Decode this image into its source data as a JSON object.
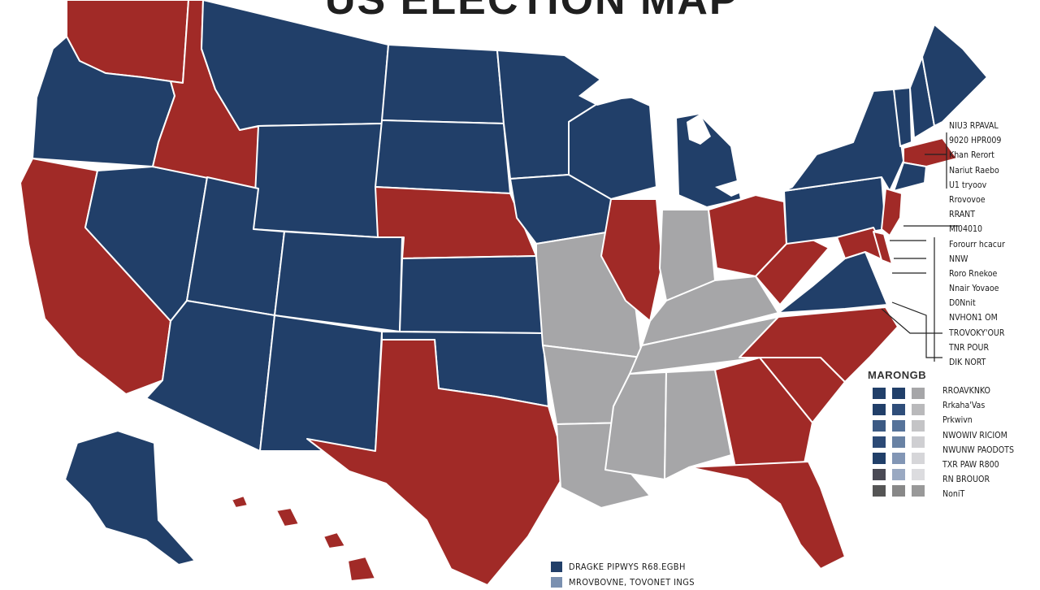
{
  "title": "US ELECTION MAP",
  "colors": {
    "blue": "#213f69",
    "red": "#a12a27",
    "gray": "#a6a6a8",
    "background": "#ffffff"
  },
  "northeast_labels": [
    "NIU3 RPAVAL",
    "9020 HPR009",
    "Khan Rerort",
    "Nariut Raebo",
    "U1 tryoov",
    "Rrovovoe",
    "RRANT",
    "MI04010",
    "Forourr hcacur",
    "NNW",
    "Roro Rnekoe",
    "Nnair Yovaoe",
    "D0Nnit",
    "NVHON1 OM",
    "TROVOKY'OUR",
    "TNR POUR",
    "DIK NORT"
  ],
  "legend": {
    "title": "MARONGB",
    "items": [
      "RROAVKNKO",
      "Rrkaha'Vas",
      "Prkwivn",
      "NWOWIV RICIOM",
      "NWUNW PAODOTS",
      "TXR PAW R800",
      "RN BROUOR",
      "NoniT"
    ],
    "swatch_columns": [
      [
        "#213f69",
        "#213f69",
        "#3c5a84",
        "#2c4a76",
        "#213f69",
        "#4a4a55",
        "#555"
      ],
      [
        "#213f69",
        "#2f4e7a",
        "#56739a",
        "#6982a4",
        "#8296b5",
        "#9aa9c2",
        "#888"
      ],
      [
        "#a6a6a8",
        "#b9b9bb",
        "#c4c4c6",
        "#cfcfd2",
        "#d6d6d9",
        "#dcdcdf",
        "#999"
      ]
    ]
  },
  "bottom_key": [
    {
      "label": "DRAGKE PIPWYS R68.EGBH",
      "color": "#213f69"
    },
    {
      "label": "MROVBOVNE, TOVONET INGS",
      "color": "#7a90b0"
    }
  ],
  "states": [
    {
      "name": "washington",
      "color": "red"
    },
    {
      "name": "oregon",
      "color": "blue"
    },
    {
      "name": "california",
      "color": "red"
    },
    {
      "name": "nevada",
      "color": "blue"
    },
    {
      "name": "idaho",
      "color": "red"
    },
    {
      "name": "montana",
      "color": "blue"
    },
    {
      "name": "wyoming",
      "color": "blue"
    },
    {
      "name": "utah",
      "color": "blue"
    },
    {
      "name": "arizona",
      "color": "blue"
    },
    {
      "name": "colorado",
      "color": "blue"
    },
    {
      "name": "new-mexico",
      "color": "blue"
    },
    {
      "name": "north-dakota",
      "color": "blue"
    },
    {
      "name": "south-dakota",
      "color": "blue"
    },
    {
      "name": "nebraska",
      "color": "red"
    },
    {
      "name": "kansas",
      "color": "blue"
    },
    {
      "name": "oklahoma",
      "color": "blue"
    },
    {
      "name": "texas",
      "color": "red"
    },
    {
      "name": "minnesota",
      "color": "blue"
    },
    {
      "name": "iowa",
      "color": "blue"
    },
    {
      "name": "missouri",
      "color": "gray"
    },
    {
      "name": "arkansas",
      "color": "gray"
    },
    {
      "name": "louisiana",
      "color": "gray"
    },
    {
      "name": "wisconsin",
      "color": "blue"
    },
    {
      "name": "illinois",
      "color": "red"
    },
    {
      "name": "michigan",
      "color": "blue"
    },
    {
      "name": "indiana",
      "color": "gray"
    },
    {
      "name": "ohio",
      "color": "red"
    },
    {
      "name": "kentucky",
      "color": "gray"
    },
    {
      "name": "tennessee",
      "color": "gray"
    },
    {
      "name": "mississippi",
      "color": "gray"
    },
    {
      "name": "alabama",
      "color": "gray"
    },
    {
      "name": "georgia",
      "color": "red"
    },
    {
      "name": "florida",
      "color": "red"
    },
    {
      "name": "south-carolina",
      "color": "red"
    },
    {
      "name": "north-carolina",
      "color": "red"
    },
    {
      "name": "virginia",
      "color": "blue"
    },
    {
      "name": "west-virginia",
      "color": "red"
    },
    {
      "name": "pennsylvania",
      "color": "blue"
    },
    {
      "name": "new-york",
      "color": "blue"
    },
    {
      "name": "new-jersey",
      "color": "red"
    },
    {
      "name": "maryland",
      "color": "red"
    },
    {
      "name": "delaware",
      "color": "red"
    },
    {
      "name": "vermont",
      "color": "blue"
    },
    {
      "name": "new-hampshire",
      "color": "blue"
    },
    {
      "name": "maine",
      "color": "blue"
    },
    {
      "name": "massachusetts",
      "color": "red"
    },
    {
      "name": "connecticut",
      "color": "blue"
    },
    {
      "name": "alaska",
      "color": "blue"
    },
    {
      "name": "hawaii",
      "color": "red"
    }
  ]
}
